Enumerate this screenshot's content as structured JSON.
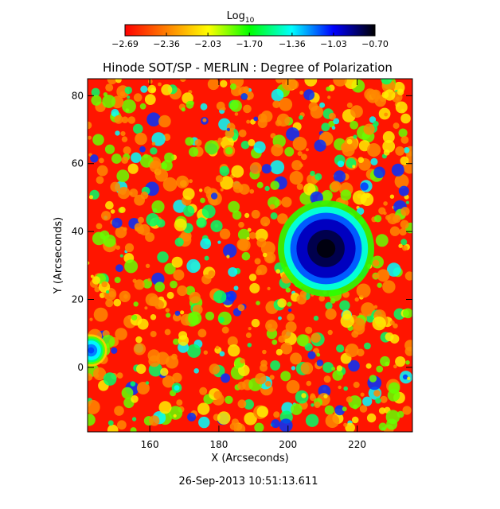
{
  "chart_data": {
    "type": "heatmap",
    "title": "Hinode SOT/SP - MERLIN : Degree of Polarization",
    "xlabel": "X (Arcseconds)",
    "ylabel": "Y (Arcseconds)",
    "xlim": [
      142,
      236
    ],
    "ylim": [
      -19,
      85
    ],
    "x_ticks": [
      160,
      180,
      200,
      220
    ],
    "y_ticks": [
      0,
      20,
      40,
      60,
      80
    ],
    "colorbar": {
      "label": "Log",
      "label_sub": "10",
      "ticks": [
        -2.69,
        -2.36,
        -2.03,
        -1.7,
        -1.36,
        -1.03,
        -0.7
      ],
      "tick_labels": [
        "−2.69",
        "−2.36",
        "−2.03",
        "−1.70",
        "−1.36",
        "−1.03",
        "−0.70"
      ],
      "range": [
        -2.69,
        -0.7
      ],
      "colors": [
        "#ff0000",
        "#ff8000",
        "#ffff00",
        "#00ff00",
        "#00ffff",
        "#0000ff",
        "#000000"
      ]
    },
    "features": [
      {
        "kind": "sunspot",
        "center": [
          211,
          35
        ],
        "radius_arcsec": 9,
        "log_value": -0.8
      },
      {
        "kind": "edge-blob",
        "center": [
          143,
          5
        ],
        "radius_arcsec": 3,
        "log_value": -1.2
      }
    ],
    "timestamp": "26-Sep-2013 10:51:13.611"
  }
}
